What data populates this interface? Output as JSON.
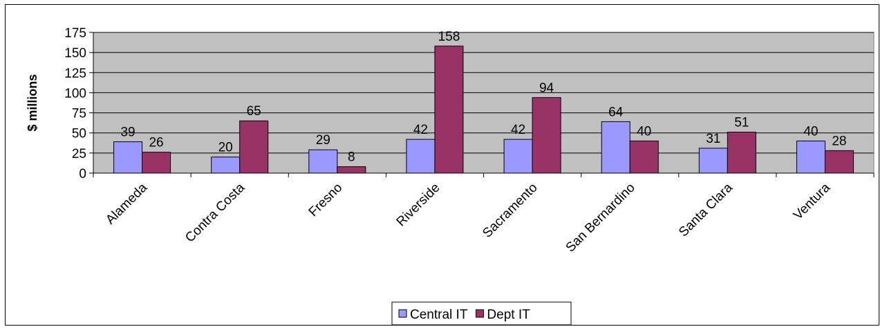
{
  "chart_data": {
    "type": "bar",
    "title": "",
    "xlabel": "",
    "ylabel": "$ millions",
    "ylim": [
      0,
      175
    ],
    "yticks": [
      0,
      25,
      50,
      75,
      100,
      125,
      150,
      175
    ],
    "grid": true,
    "legend_position": "bottom",
    "categories": [
      "Alameda",
      "Contra Costa",
      "Fresno",
      "Riverside",
      "Sacramento",
      "San Bernardino",
      "Santa Clara",
      "Ventura"
    ],
    "series": [
      {
        "name": "Central IT",
        "color": "#9999ff",
        "values": [
          39,
          20,
          29,
          42,
          42,
          64,
          31,
          40
        ]
      },
      {
        "name": "Dept IT",
        "color": "#993366",
        "values": [
          26,
          65,
          8,
          158,
          94,
          40,
          51,
          28
        ]
      }
    ],
    "plot_background": "#c0c0c0"
  }
}
